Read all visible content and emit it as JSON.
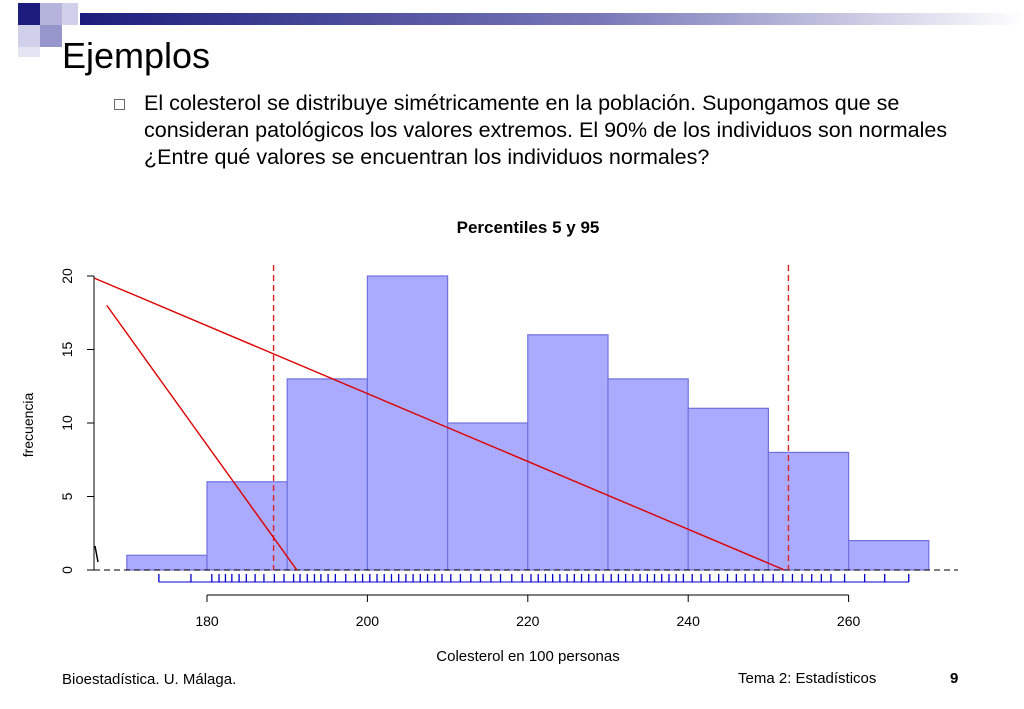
{
  "slide": {
    "title": "Ejemplos",
    "bullet": "El colesterol se distribuye simétricamente en la población. Supongamos que se consideran patológicos los valores extremos. El 90% de los individuos son normales ¿Entre qué valores se encuentran los individuos normales?",
    "footer_left": "Bioestadística. U. Málaga.",
    "footer_center": "Tema 2: Estadísticos",
    "page_number": "9"
  },
  "colors": {
    "bar_fill": "#aaaaff",
    "bar_stroke": "#7070e0",
    "rug": "#0000cc",
    "percentile_line": "#dd2222",
    "fit_line": "#dd0000",
    "deco_dark": "#1c1c7c",
    "deco_light": "#b4b4dc"
  },
  "chart_data": {
    "type": "bar",
    "title": "Percentiles 5 y 95",
    "xlabel": "Colesterol en 100 personas",
    "ylabel": "frecuencia",
    "xlim": [
      168,
      268
    ],
    "ylim": [
      0,
      20
    ],
    "xticks": [
      "180",
      "200",
      "220",
      "240",
      "260"
    ],
    "yticks": [
      "0",
      "5",
      "10",
      "15",
      "20"
    ],
    "bins": [
      {
        "from": 170,
        "to": 180,
        "value": 1
      },
      {
        "from": 180,
        "to": 190,
        "value": 6
      },
      {
        "from": 190,
        "to": 200,
        "value": 13
      },
      {
        "from": 200,
        "to": 210,
        "value": 20
      },
      {
        "from": 210,
        "to": 220,
        "value": 10
      },
      {
        "from": 220,
        "to": 230,
        "value": 16
      },
      {
        "from": 230,
        "to": 240,
        "value": 13
      },
      {
        "from": 240,
        "to": 250,
        "value": 11
      },
      {
        "from": 250,
        "to": 260,
        "value": 8
      },
      {
        "from": 260,
        "to": 270,
        "value": 2
      }
    ],
    "percentiles": [
      188.3,
      252.5
    ],
    "rug": [
      174,
      178,
      180.6,
      181.5,
      182.3,
      183.1,
      184,
      184.9,
      186,
      187.1,
      188.4,
      189.6,
      190.8,
      191.6,
      192.5,
      193.4,
      194.2,
      195.1,
      196,
      197.3,
      198.5,
      199.4,
      200.3,
      201.2,
      202.1,
      203,
      203.9,
      204.8,
      205.7,
      206.6,
      207.5,
      208.4,
      209.3,
      210.4,
      211.6,
      212.9,
      214.1,
      215.4,
      216.6,
      218,
      219.3,
      220.4,
      221.3,
      222.2,
      223.1,
      224,
      224.9,
      225.8,
      226.7,
      227.6,
      228.5,
      229.4,
      230.4,
      231.3,
      232.2,
      233.1,
      234,
      234.9,
      235.8,
      236.7,
      237.6,
      238.5,
      239.4,
      240.5,
      241.6,
      242.7,
      243.8,
      244.9,
      246,
      247.1,
      248.2,
      249.3,
      250.6,
      251.8,
      253,
      254.2,
      255.4,
      256.6,
      257.8,
      259.5,
      262,
      264.5,
      267.5
    ],
    "fit_lines": [
      {
        "x": [
          167.5,
          191.2
        ],
        "y": [
          18,
          0
        ]
      },
      {
        "x": [
          161,
          252
        ],
        "y": [
          21,
          0
        ]
      }
    ]
  }
}
